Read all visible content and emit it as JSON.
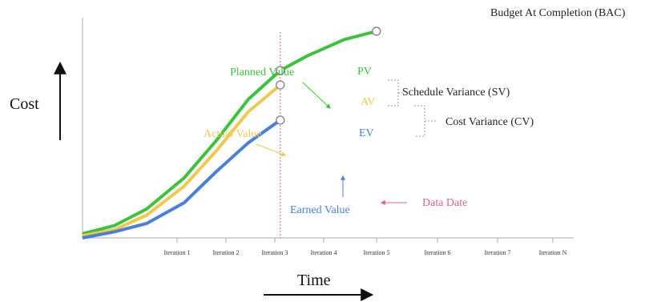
{
  "chart_data": {
    "type": "line",
    "x_label": "Time",
    "y_label": "Cost",
    "categories": [
      "Iteration 1",
      "Iteration 2",
      "Iteration 3",
      "Iteration 4",
      "Iteration 5",
      "Iteration 6",
      "Iteration 7",
      "Iteration N"
    ],
    "series": [
      {
        "name": "Planned Value",
        "short_label": "PV",
        "color": "#3cc23c",
        "points": [
          [
            0,
            0.02
          ],
          [
            0.6,
            0.06
          ],
          [
            1.2,
            0.14
          ],
          [
            1.9,
            0.29
          ],
          [
            2.5,
            0.47
          ],
          [
            3.1,
            0.67
          ],
          [
            3.7,
            0.81
          ],
          [
            4.2,
            0.88
          ],
          [
            4.9,
            0.96
          ],
          [
            5.5,
            1.0
          ]
        ]
      },
      {
        "name": "Actual Value",
        "short_label": "AV",
        "color": "#f0c850",
        "points": [
          [
            0,
            0.01
          ],
          [
            0.6,
            0.04
          ],
          [
            1.2,
            0.11
          ],
          [
            1.9,
            0.25
          ],
          [
            2.5,
            0.42
          ],
          [
            3.1,
            0.61
          ],
          [
            3.7,
            0.74
          ]
        ]
      },
      {
        "name": "Earned Value",
        "short_label": "EV",
        "color": "#4a80d8",
        "points": [
          [
            0,
            0.0
          ],
          [
            0.6,
            0.03
          ],
          [
            1.2,
            0.07
          ],
          [
            1.9,
            0.17
          ],
          [
            2.5,
            0.32
          ],
          [
            3.1,
            0.46
          ],
          [
            3.7,
            0.57
          ]
        ]
      }
    ],
    "data_date": {
      "x": 3.7,
      "label": "Data Date",
      "color": "#e0608a"
    },
    "annotations": {
      "bac": "Budget At Completion (BAC)",
      "sv": "Schedule Variance (SV)",
      "cv": "Cost Variance (CV)"
    }
  }
}
